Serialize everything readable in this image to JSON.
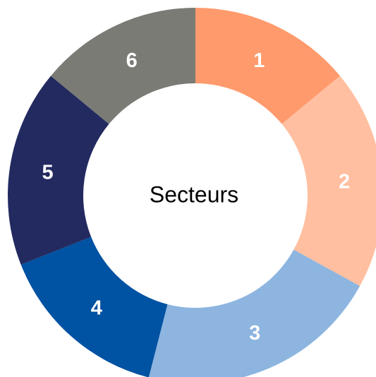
{
  "chart_data": {
    "type": "donut",
    "center_label": "Secteurs",
    "categories": [
      "1",
      "2",
      "3",
      "4",
      "5",
      "6"
    ],
    "values": [
      14,
      19,
      21,
      15,
      17,
      14
    ],
    "colors": [
      "#ff9a6c",
      "#ffbfa0",
      "#8db5e0",
      "#0052a3",
      "#222a60",
      "#7a7b75"
    ]
  }
}
